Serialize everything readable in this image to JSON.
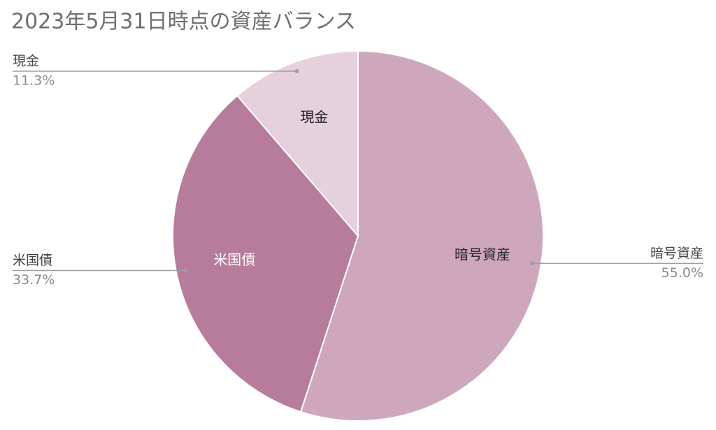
{
  "chart_data": {
    "type": "pie",
    "title": "2023年5月31日時点の資産バランス",
    "categories": [
      "暗号資産",
      "米国債",
      "現金"
    ],
    "values": [
      55.0,
      33.7,
      11.3
    ],
    "value_labels": [
      "55.0%",
      "33.7%",
      "11.3%"
    ],
    "colors": [
      "#cfa7bc",
      "#b77c9c",
      "#e6d0dc"
    ]
  }
}
